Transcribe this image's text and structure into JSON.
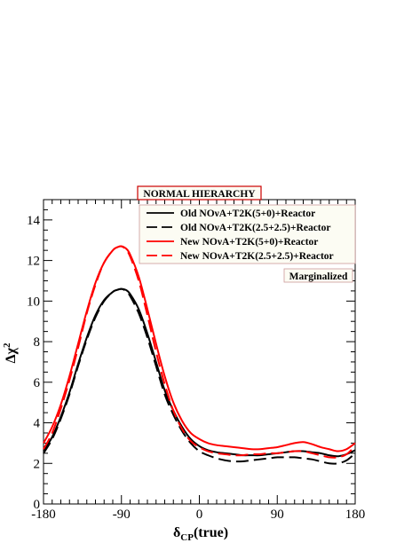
{
  "chart_data": {
    "type": "line",
    "title": "NORMAL HIERARCHY",
    "annotation": "Marginalized",
    "xlabel": {
      "main": "δ",
      "sub": "CP",
      "suffix": "(true)"
    },
    "ylabel": {
      "main": "Δχ",
      "sup": "2"
    },
    "xlim": [
      -180,
      180
    ],
    "ylim": [
      0,
      15
    ],
    "xticks": [
      -180,
      -90,
      0,
      90,
      180
    ],
    "yticks": [
      0,
      2,
      4,
      6,
      8,
      10,
      12,
      14
    ],
    "grid": false,
    "legend_position": "top-right",
    "series": [
      {
        "name": "Old NOνA+T2K(5+0)+Reactor",
        "color": "#000000",
        "dash": "solid",
        "x": [
          -180,
          -170,
          -160,
          -150,
          -140,
          -130,
          -120,
          -110,
          -100,
          -95,
          -90,
          -85,
          -80,
          -70,
          -60,
          -50,
          -40,
          -30,
          -20,
          -10,
          0,
          10,
          20,
          30,
          40,
          50,
          60,
          70,
          80,
          90,
          100,
          110,
          120,
          130,
          140,
          150,
          160,
          170,
          180
        ],
        "y": [
          2.6,
          3.3,
          4.3,
          5.5,
          6.9,
          8.2,
          9.3,
          10.05,
          10.45,
          10.55,
          10.6,
          10.55,
          10.35,
          9.6,
          8.4,
          7.0,
          5.6,
          4.6,
          3.8,
          3.2,
          2.85,
          2.65,
          2.55,
          2.5,
          2.45,
          2.4,
          2.4,
          2.4,
          2.45,
          2.5,
          2.55,
          2.6,
          2.6,
          2.55,
          2.5,
          2.4,
          2.35,
          2.45,
          2.65
        ]
      },
      {
        "name": "Old NOνA+T2K(2.5+2.5)+Reactor",
        "color": "#000000",
        "dash": "long-dash",
        "x": [
          -180,
          -170,
          -160,
          -150,
          -140,
          -130,
          -120,
          -110,
          -100,
          -95,
          -90,
          -85,
          -80,
          -70,
          -60,
          -50,
          -40,
          -30,
          -20,
          -10,
          0,
          10,
          20,
          30,
          40,
          50,
          60,
          70,
          80,
          90,
          100,
          110,
          120,
          130,
          140,
          150,
          160,
          170,
          180
        ],
        "y": [
          2.5,
          3.2,
          4.2,
          5.4,
          6.8,
          8.1,
          9.2,
          10.0,
          10.45,
          10.55,
          10.6,
          10.5,
          10.25,
          9.4,
          8.2,
          6.8,
          5.4,
          4.4,
          3.6,
          3.0,
          2.6,
          2.4,
          2.25,
          2.15,
          2.1,
          2.1,
          2.15,
          2.2,
          2.25,
          2.3,
          2.3,
          2.3,
          2.25,
          2.2,
          2.1,
          2.0,
          2.0,
          2.15,
          2.5
        ]
      },
      {
        "name": "New NOνA+T2K(5+0)+Reactor",
        "color": "#ff0000",
        "dash": "solid",
        "x": [
          -180,
          -170,
          -160,
          -150,
          -140,
          -130,
          -120,
          -110,
          -100,
          -95,
          -90,
          -85,
          -80,
          -70,
          -60,
          -50,
          -40,
          -30,
          -20,
          -10,
          0,
          10,
          20,
          30,
          40,
          50,
          60,
          70,
          80,
          90,
          100,
          110,
          120,
          130,
          140,
          150,
          160,
          170,
          180
        ],
        "y": [
          3.0,
          3.8,
          4.9,
          6.3,
          7.9,
          9.5,
          10.9,
          11.9,
          12.5,
          12.65,
          12.7,
          12.6,
          12.3,
          11.2,
          9.6,
          7.9,
          6.3,
          5.0,
          4.1,
          3.5,
          3.2,
          3.0,
          2.9,
          2.85,
          2.8,
          2.75,
          2.7,
          2.7,
          2.75,
          2.8,
          2.9,
          3.0,
          3.05,
          2.95,
          2.8,
          2.7,
          2.6,
          2.7,
          3.0
        ]
      },
      {
        "name": "New NOνA+T2K(2.5+2.5)+Reactor",
        "color": "#ff0000",
        "dash": "long-dash",
        "x": [
          -180,
          -170,
          -160,
          -150,
          -140,
          -130,
          -120,
          -110,
          -100,
          -95,
          -90,
          -85,
          -80,
          -70,
          -60,
          -50,
          -40,
          -30,
          -20,
          -10,
          0,
          10,
          20,
          30,
          40,
          50,
          60,
          70,
          80,
          90,
          100,
          110,
          120,
          130,
          140,
          150,
          160,
          170,
          180
        ],
        "y": [
          2.7,
          3.5,
          4.7,
          6.1,
          7.7,
          9.4,
          10.8,
          11.9,
          12.5,
          12.65,
          12.7,
          12.55,
          12.2,
          11.0,
          9.3,
          7.5,
          5.9,
          4.6,
          3.7,
          3.1,
          2.8,
          2.6,
          2.5,
          2.45,
          2.4,
          2.4,
          2.45,
          2.45,
          2.5,
          2.5,
          2.55,
          2.6,
          2.6,
          2.5,
          2.4,
          2.3,
          2.3,
          2.45,
          2.85
        ]
      }
    ]
  }
}
